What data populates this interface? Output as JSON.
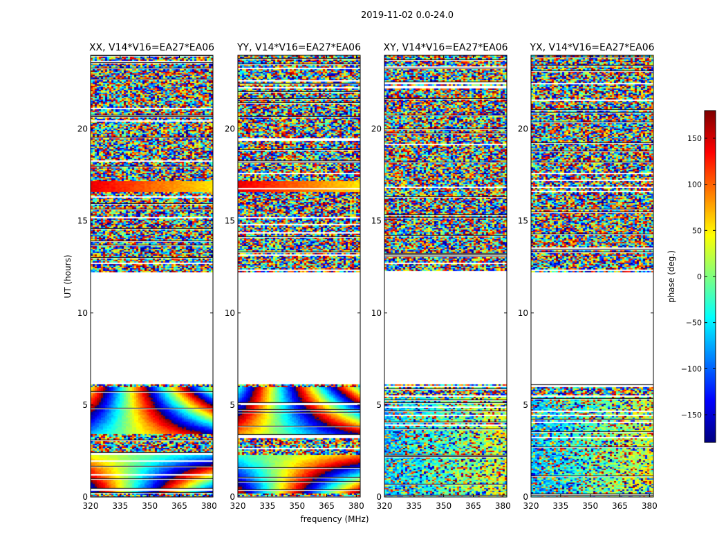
{
  "figure": {
    "suptitle": "2019-11-02 0.0-24.0",
    "xlabel": "frequency (MHz)",
    "ylabel": "UT (hours)"
  },
  "chart_data": {
    "type": "heatmap",
    "x_range": [
      320,
      382
    ],
    "y_range": [
      0,
      24
    ],
    "x_ticks": [
      320,
      335,
      350,
      365,
      380
    ],
    "y_ticks": [
      0,
      5,
      10,
      15,
      20
    ],
    "panels": [
      {
        "title": "XX, V14*V16=EA27*EA06",
        "pattern": "parallel"
      },
      {
        "title": "YY, V14*V16=EA27*EA06",
        "pattern": "parallel"
      },
      {
        "title": "XY, V14*V16=EA27*EA06",
        "pattern": "cross"
      },
      {
        "title": "YX, V14*V16=EA27*EA06",
        "pattern": "cross"
      }
    ],
    "data_gap_hours": [
      6.1,
      12.2
    ],
    "colorbar": {
      "label": "phase (deg.)",
      "range": [
        -180,
        180
      ],
      "ticks": [
        150,
        100,
        50,
        0,
        -50,
        -100,
        -150
      ],
      "tick_labels": [
        "150",
        "100",
        "50",
        "0",
        "−50",
        "−100",
        "−150"
      ],
      "colormap": "jet"
    }
  }
}
